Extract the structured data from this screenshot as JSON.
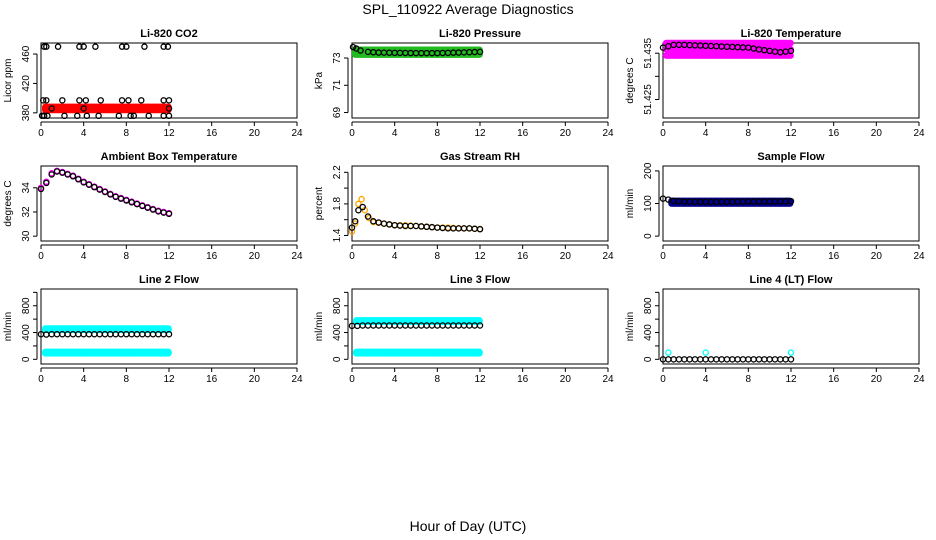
{
  "page": {
    "title": "SPL_110922  Average Diagnostics",
    "xlabel": "Hour of Day (UTC)"
  },
  "chart_data": [
    {
      "type": "scatter",
      "title": "Li-820 CO2",
      "ylabel": "Licor ppm",
      "xlim": [
        0,
        24
      ],
      "ylim": [
        373,
        475
      ],
      "xticks": [
        0,
        4,
        8,
        12,
        16,
        20,
        24
      ],
      "yticks": [
        380,
        420,
        460
      ],
      "series": [
        {
          "color": "#ff0000",
          "style": "band",
          "x_range": [
            0.4,
            12
          ],
          "values": [
            384,
            388
          ]
        },
        {
          "color": "#000000",
          "style": "points",
          "points": [
            [
              0.1,
              376
            ],
            [
              0.3,
              470
            ],
            [
              0.5,
              470
            ],
            [
              1.6,
              470
            ],
            [
              3.6,
              470
            ],
            [
              4,
              470
            ],
            [
              5.1,
              470
            ],
            [
              7.6,
              470
            ],
            [
              8,
              470
            ],
            [
              9.7,
              470
            ],
            [
              11.5,
              470
            ],
            [
              11.9,
              470
            ],
            [
              0.2,
              397
            ],
            [
              0.5,
              397
            ],
            [
              2,
              397
            ],
            [
              3.6,
              397
            ],
            [
              4.2,
              397
            ],
            [
              5.6,
              397
            ],
            [
              7.6,
              397
            ],
            [
              8.2,
              397
            ],
            [
              9.4,
              397
            ],
            [
              11.5,
              397
            ],
            [
              12,
              397
            ],
            [
              0.3,
              376
            ],
            [
              0.6,
              376
            ],
            [
              2.2,
              376
            ],
            [
              3.4,
              376
            ],
            [
              4.3,
              376
            ],
            [
              5.4,
              376
            ],
            [
              7.3,
              376
            ],
            [
              8.4,
              376
            ],
            [
              8.7,
              376
            ],
            [
              10.1,
              376
            ],
            [
              11.5,
              376
            ],
            [
              12,
              376
            ],
            [
              1,
              386
            ],
            [
              4,
              386
            ],
            [
              12,
              386
            ]
          ]
        }
      ]
    },
    {
      "type": "scatter",
      "title": "Li-820 Pressure",
      "ylabel": "kPa",
      "xlim": [
        0,
        24
      ],
      "ylim": [
        68.6,
        74.1
      ],
      "xticks": [
        0,
        4,
        8,
        12,
        16,
        20,
        24
      ],
      "yticks": [
        69,
        71,
        73
      ],
      "series": [
        {
          "color": "#22bb22",
          "style": "band",
          "x_range": [
            0.3,
            12
          ],
          "values": [
            73.25,
            73.6
          ]
        },
        {
          "color": "#000000",
          "style": "line",
          "x": [
            0.1,
            0.4,
            0.8,
            1.5,
            2.5,
            4,
            6,
            8,
            10,
            12
          ],
          "y": [
            73.8,
            73.7,
            73.55,
            73.45,
            73.4,
            73.38,
            73.36,
            73.36,
            73.4,
            73.45
          ]
        }
      ]
    },
    {
      "type": "scatter",
      "title": "Li-820 Temperature",
      "ylabel": "degrees C",
      "xlim": [
        0,
        24
      ],
      "ylim": [
        51.421,
        51.4372
      ],
      "xticks": [
        0,
        4,
        8,
        12,
        16,
        20,
        24
      ],
      "yticks": [
        51.425,
        51.43,
        51.435
      ],
      "ytick_labels": [
        "51.425",
        "",
        "51.435"
      ],
      "series": [
        {
          "color": "#ff00ff",
          "style": "band",
          "x_range": [
            0.3,
            12
          ],
          "values": [
            51.4345,
            51.4372
          ]
        },
        {
          "color": "#000000",
          "style": "line",
          "x": [
            0,
            1,
            2,
            4,
            6,
            8,
            9,
            10,
            11,
            12
          ],
          "y": [
            51.4362,
            51.4368,
            51.4368,
            51.4366,
            51.4364,
            51.4362,
            51.4358,
            51.4355,
            51.4352,
            51.4355
          ]
        }
      ]
    },
    {
      "type": "scatter",
      "title": "Ambient Box Temperature",
      "ylabel": "degrees C",
      "xlim": [
        0,
        24
      ],
      "ylim": [
        29.6,
        35.8
      ],
      "xticks": [
        0,
        4,
        8,
        12,
        16,
        20,
        24
      ],
      "yticks": [
        30,
        32,
        34
      ],
      "series": [
        {
          "color": "#ff00ff",
          "style": "line",
          "x": [
            0,
            0.5,
            1,
            1.5,
            2,
            3,
            4,
            5,
            6,
            7,
            8,
            9,
            10,
            11,
            12
          ],
          "y": [
            34,
            34.5,
            35.2,
            35.4,
            35.3,
            35,
            34.5,
            34.1,
            33.7,
            33.3,
            33,
            32.7,
            32.4,
            32.1,
            31.9
          ]
        },
        {
          "color": "#000000",
          "style": "line",
          "x": [
            0,
            0.5,
            1,
            1.5,
            2,
            3,
            4,
            5,
            6,
            7,
            8,
            9,
            10,
            11,
            12
          ],
          "y": [
            33.9,
            34.4,
            35.1,
            35.35,
            35.25,
            34.95,
            34.45,
            34.05,
            33.65,
            33.25,
            32.95,
            32.65,
            32.35,
            32.05,
            31.85
          ]
        }
      ]
    },
    {
      "type": "scatter",
      "title": "Gas Stream RH",
      "ylabel": "percent",
      "xlim": [
        0,
        24
      ],
      "ylim": [
        1.33,
        2.28
      ],
      "xticks": [
        0,
        4,
        8,
        12,
        16,
        20,
        24
      ],
      "yticks": [
        1.4,
        1.6,
        1.8,
        2.0,
        2.2
      ],
      "ytick_labels": [
        "1.4",
        "",
        "1.8",
        "",
        "2.2"
      ],
      "series": [
        {
          "color": "#ffa500",
          "style": "line",
          "x": [
            0,
            0.3,
            0.6,
            0.9,
            1.2,
            1.6,
            2,
            3,
            4,
            5,
            6,
            7,
            8,
            9,
            10,
            11,
            12
          ],
          "y": [
            1.45,
            1.55,
            1.8,
            1.86,
            1.72,
            1.62,
            1.57,
            1.55,
            1.53,
            1.53,
            1.52,
            1.51,
            1.5,
            1.5,
            1.49,
            1.49,
            1.48
          ]
        },
        {
          "color": "#000000",
          "style": "line",
          "x": [
            0,
            0.3,
            0.6,
            1,
            1.5,
            2,
            3,
            4,
            5,
            6,
            7,
            8,
            9,
            10,
            11,
            12
          ],
          "y": [
            1.5,
            1.58,
            1.72,
            1.76,
            1.64,
            1.58,
            1.55,
            1.53,
            1.52,
            1.52,
            1.51,
            1.5,
            1.49,
            1.49,
            1.49,
            1.48
          ]
        }
      ]
    },
    {
      "type": "scatter",
      "title": "Sample Flow",
      "ylabel": "ml/min",
      "xlim": [
        0,
        24
      ],
      "ylim": [
        -15,
        215
      ],
      "xticks": [
        0,
        4,
        8,
        12,
        16,
        20,
        24
      ],
      "yticks": [
        0,
        100,
        200
      ],
      "series": [
        {
          "color": "#00008b",
          "style": "band",
          "x_range": [
            0.8,
            12
          ],
          "values": [
            100,
            108
          ]
        },
        {
          "color": "#000000",
          "style": "line",
          "x": [
            0,
            0.5,
            1,
            2,
            4,
            6,
            8,
            10,
            12
          ],
          "y": [
            115,
            112,
            108,
            106,
            105,
            105,
            106,
            106,
            107
          ]
        }
      ]
    },
    {
      "type": "scatter",
      "title": "Line 2 Flow",
      "ylabel": "ml/min",
      "xlim": [
        0,
        24
      ],
      "ylim": [
        -70,
        1050
      ],
      "xticks": [
        0,
        4,
        8,
        12,
        16,
        20,
        24
      ],
      "yticks": [
        0,
        200,
        400,
        600,
        800,
        1000
      ],
      "ytick_labels": [
        "0",
        "",
        "400",
        "",
        "800",
        ""
      ],
      "series": [
        {
          "color": "#00ffff",
          "style": "band",
          "x_range": [
            0.4,
            12
          ],
          "values": [
            440,
            460
          ]
        },
        {
          "color": "#00ffff",
          "style": "band",
          "x_range": [
            0.4,
            12
          ],
          "values": [
            90,
            110
          ]
        },
        {
          "color": "#000000",
          "style": "line",
          "x": [
            0,
            0.5,
            1,
            4,
            8,
            12
          ],
          "y": [
            375,
            370,
            375,
            375,
            375,
            375
          ]
        }
      ]
    },
    {
      "type": "scatter",
      "title": "Line 3 Flow",
      "ylabel": "ml/min",
      "xlim": [
        0,
        24
      ],
      "ylim": [
        -70,
        1050
      ],
      "xticks": [
        0,
        4,
        8,
        12,
        16,
        20,
        24
      ],
      "yticks": [
        0,
        200,
        400,
        600,
        800,
        1000
      ],
      "ytick_labels": [
        "0",
        "",
        "400",
        "",
        "800",
        ""
      ],
      "series": [
        {
          "color": "#00ffff",
          "style": "band",
          "x_range": [
            0.4,
            12
          ],
          "values": [
            560,
            580
          ]
        },
        {
          "color": "#00ffff",
          "style": "band",
          "x_range": [
            0.4,
            12
          ],
          "values": [
            90,
            110
          ]
        },
        {
          "color": "#000000",
          "style": "line",
          "x": [
            0,
            0.5,
            1,
            4,
            8,
            12
          ],
          "y": [
            500,
            500,
            505,
            505,
            505,
            505
          ]
        }
      ]
    },
    {
      "type": "scatter",
      "title": "Line 4 (LT) Flow",
      "ylabel": "ml/min",
      "xlim": [
        0,
        24
      ],
      "ylim": [
        -70,
        1050
      ],
      "xticks": [
        0,
        4,
        8,
        12,
        16,
        20,
        24
      ],
      "yticks": [
        0,
        200,
        400,
        600,
        800,
        1000
      ],
      "ytick_labels": [
        "0",
        "",
        "400",
        "",
        "800",
        ""
      ],
      "series": [
        {
          "color": "#000000",
          "style": "line",
          "x": [
            0,
            4,
            8,
            12
          ],
          "y": [
            0,
            0,
            0,
            0
          ]
        },
        {
          "color": "#00ffff",
          "style": "points",
          "points": [
            [
              0.5,
              100
            ],
            [
              4,
              100
            ],
            [
              12,
              100
            ]
          ]
        }
      ]
    }
  ]
}
